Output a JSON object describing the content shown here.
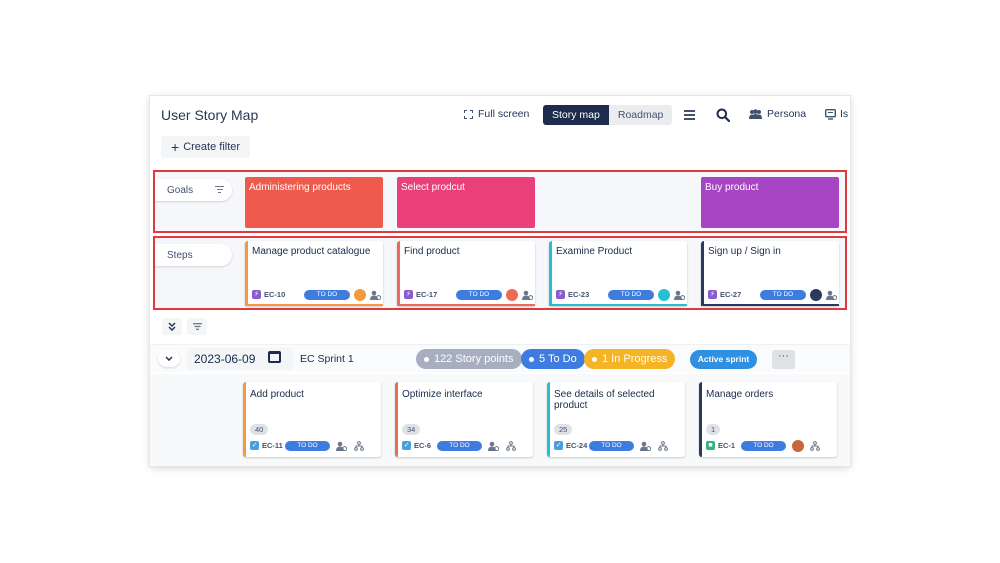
{
  "header": {
    "title": "User Story Map",
    "fullscreen_label": "Full screen",
    "view_story_map": "Story map",
    "view_roadmap": "Roadmap",
    "persona_label": "Persona",
    "issues_label": "Is"
  },
  "create_filter_label": "Create filter",
  "goals": {
    "label": "Goals",
    "cards": [
      {
        "title": "Administering products",
        "color": "#ef5a4c"
      },
      {
        "title": "Select prodcut",
        "color": "#e9407a"
      },
      {
        "title": "Buy product",
        "color": "#a845c4"
      }
    ]
  },
  "steps": {
    "label": "Steps",
    "cards": [
      {
        "title": "Manage product catalogue",
        "key": "EC-10",
        "status": "TO DO",
        "accent": "#f29a3c",
        "avatar": "#f29a3c"
      },
      {
        "title": "Find product",
        "key": "EC-17",
        "status": "TO DO",
        "accent": "#ef6a55",
        "avatar": "#ef6a55"
      },
      {
        "title": "Examine Product",
        "key": "EC-23",
        "status": "TO DO",
        "accent": "#25bfd0",
        "avatar": "#25bfd0"
      },
      {
        "title": "Sign up / Sign in",
        "key": "EC-27",
        "status": "TO DO",
        "accent": "#2a3a5c",
        "avatar": "#2a3a5c"
      }
    ]
  },
  "sprint": {
    "date": "2023-06-09",
    "name": "EC Sprint 1",
    "story_points": "122 Story points",
    "todo": "5 To Do",
    "in_progress": "1 In Progress",
    "active_label": "Active sprint",
    "more_label": "···"
  },
  "stories": [
    {
      "title": "Add product",
      "points": "40",
      "key": "EC-11",
      "status": "TO DO",
      "accent": "#f29a3c"
    },
    {
      "title": "Optimize interface",
      "points": "34",
      "key": "EC-6",
      "status": "TO DO",
      "accent": "#ef6a55"
    },
    {
      "title": "See details of selected product",
      "points": "25",
      "key": "EC-24",
      "status": "TO DO",
      "accent": "#25bfd0"
    },
    {
      "title": "Manage orders",
      "points": "1",
      "key": "EC-1",
      "status": "TO DO",
      "accent": "#2a3a5c"
    }
  ]
}
